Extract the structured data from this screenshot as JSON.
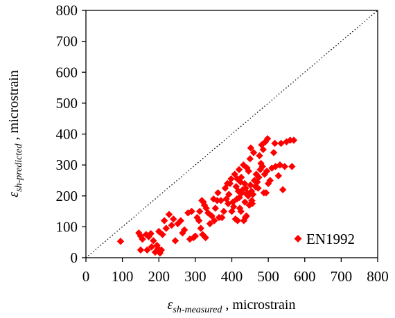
{
  "chart_data": {
    "type": "scatter",
    "xlabel": {
      "symbol": "ε",
      "subscript": "sh-measured",
      "suffix": " , microstrain"
    },
    "ylabel": {
      "symbol": "ε",
      "subscript": "sh-predicted",
      "suffix": " , microstrain"
    },
    "xlim": [
      0,
      800
    ],
    "ylim": [
      0,
      800
    ],
    "x_ticks": [
      0,
      100,
      200,
      300,
      400,
      500,
      600,
      700,
      800
    ],
    "y_ticks": [
      0,
      100,
      200,
      300,
      400,
      500,
      600,
      700,
      800
    ],
    "x_tick_labels": [
      "0",
      "100",
      "200",
      "300",
      "400",
      "500",
      "600",
      "700",
      "800"
    ],
    "y_tick_labels": [
      "0",
      "100",
      "200",
      "300",
      "400",
      "500",
      "600",
      "700",
      "800"
    ],
    "grid": false,
    "legend": {
      "position": "bottom-right",
      "entries": [
        "EN1992"
      ]
    },
    "reference_line": {
      "style": "dotted",
      "from": [
        0,
        0
      ],
      "to": [
        800,
        800
      ]
    },
    "marker_color": "#ff0000",
    "marker": "diamond",
    "series": [
      {
        "name": "EN1992",
        "points": [
          [
            95,
            53
          ],
          [
            145,
            80
          ],
          [
            150,
            70
          ],
          [
            155,
            60
          ],
          [
            150,
            25
          ],
          [
            165,
            75
          ],
          [
            172,
            68
          ],
          [
            178,
            78
          ],
          [
            168,
            25
          ],
          [
            180,
            35
          ],
          [
            185,
            55
          ],
          [
            190,
            18
          ],
          [
            195,
            40
          ],
          [
            198,
            30
          ],
          [
            203,
            15
          ],
          [
            207,
            25
          ],
          [
            210,
            75
          ],
          [
            200,
            85
          ],
          [
            220,
            95
          ],
          [
            215,
            120
          ],
          [
            228,
            140
          ],
          [
            235,
            105
          ],
          [
            240,
            125
          ],
          [
            245,
            55
          ],
          [
            252,
            110
          ],
          [
            260,
            120
          ],
          [
            265,
            80
          ],
          [
            270,
            90
          ],
          [
            280,
            145
          ],
          [
            285,
            60
          ],
          [
            290,
            150
          ],
          [
            295,
            65
          ],
          [
            300,
            70
          ],
          [
            305,
            130
          ],
          [
            310,
            120
          ],
          [
            312,
            150
          ],
          [
            315,
            95
          ],
          [
            318,
            185
          ],
          [
            320,
            75
          ],
          [
            322,
            180
          ],
          [
            325,
            170
          ],
          [
            330,
            160
          ],
          [
            328,
            65
          ],
          [
            335,
            145
          ],
          [
            340,
            110
          ],
          [
            345,
            135
          ],
          [
            350,
            190
          ],
          [
            352,
            120
          ],
          [
            355,
            160
          ],
          [
            360,
            185
          ],
          [
            362,
            210
          ],
          [
            365,
            130
          ],
          [
            370,
            185
          ],
          [
            373,
            130
          ],
          [
            378,
            150
          ],
          [
            382,
            225
          ],
          [
            385,
            190
          ],
          [
            388,
            240
          ],
          [
            390,
            175
          ],
          [
            392,
            205
          ],
          [
            395,
            240
          ],
          [
            398,
            255
          ],
          [
            400,
            150
          ],
          [
            403,
            180
          ],
          [
            405,
            165
          ],
          [
            408,
            270
          ],
          [
            410,
            125
          ],
          [
            412,
            230
          ],
          [
            414,
            190
          ],
          [
            415,
            255
          ],
          [
            416,
            120
          ],
          [
            418,
            215
          ],
          [
            420,
            285
          ],
          [
            421,
            195
          ],
          [
            422,
            160
          ],
          [
            424,
            245
          ],
          [
            425,
            150
          ],
          [
            426,
            260
          ],
          [
            428,
            210
          ],
          [
            430,
            220
          ],
          [
            432,
            300
          ],
          [
            433,
            120
          ],
          [
            435,
            240
          ],
          [
            436,
            180
          ],
          [
            437,
            130
          ],
          [
            438,
            225
          ],
          [
            440,
            135
          ],
          [
            441,
            205
          ],
          [
            442,
            290
          ],
          [
            443,
            210
          ],
          [
            445,
            200
          ],
          [
            446,
            280
          ],
          [
            448,
            170
          ],
          [
            450,
            320
          ],
          [
            451,
            235
          ],
          [
            452,
            355
          ],
          [
            454,
            215
          ],
          [
            455,
            185
          ],
          [
            456,
            175
          ],
          [
            458,
            205
          ],
          [
            460,
            340
          ],
          [
            462,
            250
          ],
          [
            465,
            230
          ],
          [
            467,
            270
          ],
          [
            470,
            245
          ],
          [
            472,
            225
          ],
          [
            474,
            260
          ],
          [
            476,
            330
          ],
          [
            478,
            285
          ],
          [
            480,
            305
          ],
          [
            482,
            365
          ],
          [
            484,
            295
          ],
          [
            486,
            350
          ],
          [
            488,
            210
          ],
          [
            490,
            270
          ],
          [
            492,
            375
          ],
          [
            494,
            210
          ],
          [
            496,
            280
          ],
          [
            498,
            385
          ],
          [
            500,
            240
          ],
          [
            510,
            290
          ],
          [
            515,
            340
          ],
          [
            520,
            295
          ],
          [
            528,
            265
          ],
          [
            532,
            300
          ],
          [
            535,
            370
          ],
          [
            540,
            220
          ],
          [
            545,
            295
          ],
          [
            550,
            375
          ],
          [
            560,
            380
          ],
          [
            565,
            295
          ],
          [
            570,
            380
          ],
          [
            518,
            370
          ],
          [
            505,
            250
          ]
        ]
      }
    ]
  }
}
